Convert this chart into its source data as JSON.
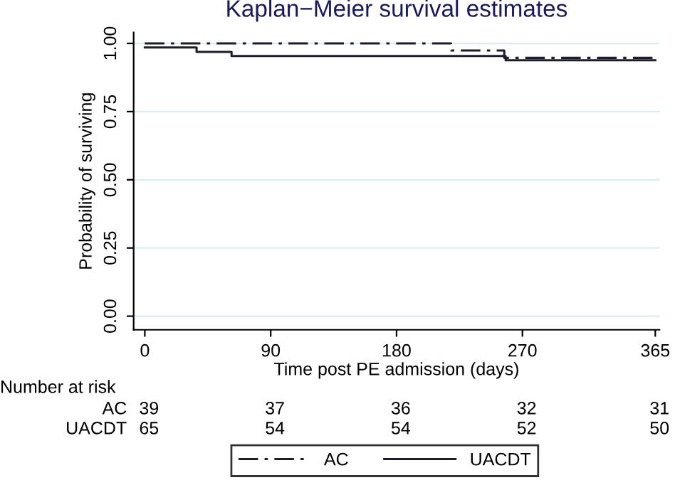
{
  "chart_data": {
    "type": "step",
    "title": "Kaplan−Meier survival estimates",
    "xlabel": "Time post PE admission (days)",
    "ylabel": "Probability of surviving",
    "series": [
      {
        "name": "AC",
        "color": "#1c1c2c",
        "line_style": "dashdot",
        "x": [
          0,
          219,
          257,
          365
        ],
        "values": [
          1.0,
          0.974,
          0.947,
          0.947
        ]
      },
      {
        "name": "UACDT",
        "color": "#1c1c2c",
        "line_style": "solid",
        "x": [
          0,
          37,
          62,
          258,
          365
        ],
        "values": [
          0.985,
          0.969,
          0.954,
          0.938,
          0.938
        ]
      }
    ],
    "xlim": [
      -8,
      368
    ],
    "xticks": [
      0,
      90,
      180,
      270,
      365
    ],
    "ylim": [
      -0.05,
      1.04
    ],
    "yticks": [
      {
        "value": 0,
        "label": "0.00"
      },
      {
        "value": 0.25,
        "label": "0.25"
      },
      {
        "value": 0.5,
        "label": "0.50"
      },
      {
        "value": 0.75,
        "label": "0.75"
      },
      {
        "value": 1,
        "label": "1.00"
      }
    ],
    "grid": "y",
    "legend": "bottom",
    "annotations": [
      "Number at risk",
      "AC",
      "39",
      "37",
      "36",
      "32",
      "31",
      "UACDT",
      "65",
      "54",
      "54",
      "52",
      "50"
    ]
  }
}
